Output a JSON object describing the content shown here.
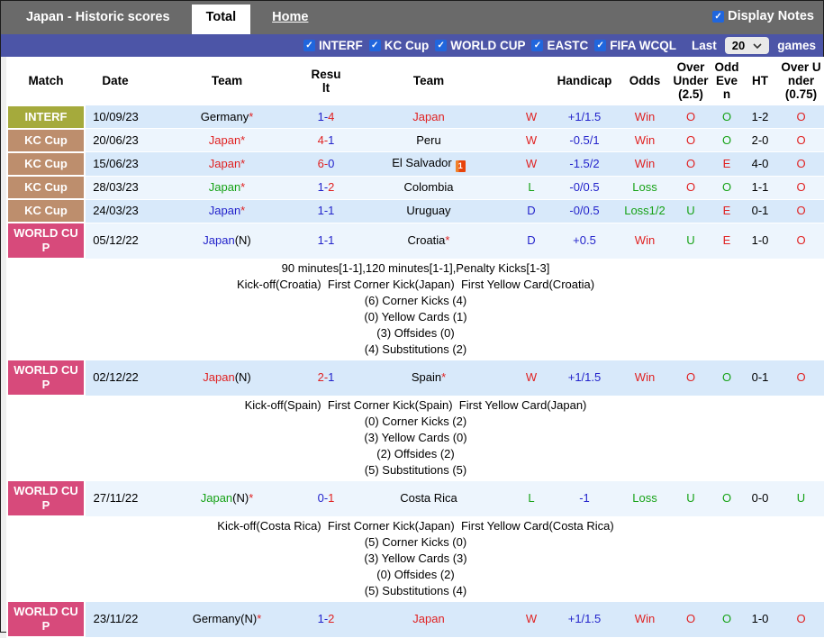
{
  "tabbar": {
    "title": "Japan - Historic scores",
    "total_tab": "Total",
    "home_tab": "Home",
    "display_notes_label": "Display Notes",
    "display_notes_checked": true
  },
  "filters": {
    "items": [
      "INTERF",
      "KC Cup",
      "WORLD CUP",
      "EASTC",
      "FIFA WCQL"
    ],
    "all_checked": true,
    "last_label": "Last",
    "games_label": "games",
    "last_value": "20",
    "check_glyph": "✓"
  },
  "palette": {
    "red": "#e02222",
    "green": "#16a216",
    "blue": "#2323cb",
    "black": "#000000",
    "interf": "#a5aa3c",
    "kc": "#bd8e6d",
    "wc": "#d74a7b",
    "stripe_blue": "#d8e9fa",
    "stripe_pale": "#edf5fd",
    "bar_gray": "#6a6a6a",
    "bar_purple": "#4c55a7",
    "checkbox_blue": "#2066dd",
    "redcard_orange": "#e8430a"
  },
  "table": {
    "headers": [
      "Match",
      "Date",
      "Team",
      "Result",
      "Team",
      "",
      "Handicap",
      "Odds",
      "Over Under (2.5)",
      "Odd Even",
      "HT",
      "Over Under (0.75)"
    ],
    "rows": [
      {
        "comp": "INTERF",
        "comp_bg": "interf",
        "date": "10/09/23",
        "home": {
          "name": "Germany",
          "n": false,
          "star": true,
          "color": "black",
          "redcard": false
        },
        "score": [
          {
            "t": "1-",
            "c": "blue"
          },
          {
            "t": "4",
            "c": "red"
          }
        ],
        "away": {
          "name": "Japan",
          "n": false,
          "star": false,
          "color": "red",
          "redcard": false
        },
        "wdl": {
          "t": "W",
          "c": "red"
        },
        "handicap": {
          "t": "+1/1.5",
          "c": "blue"
        },
        "odds": {
          "t": "Win",
          "c": "red"
        },
        "ou25": {
          "t": "O",
          "c": "red"
        },
        "oe": {
          "t": "O",
          "c": "green"
        },
        "ht": "1-2",
        "ou075": {
          "t": "O",
          "c": "red"
        },
        "stripe": "blue",
        "notes": []
      },
      {
        "comp": "KC Cup",
        "comp_bg": "kc",
        "date": "20/06/23",
        "home": {
          "name": "Japan",
          "n": false,
          "star": true,
          "color": "red",
          "redcard": false
        },
        "score": [
          {
            "t": "4-",
            "c": "red"
          },
          {
            "t": "1",
            "c": "blue"
          }
        ],
        "away": {
          "name": "Peru",
          "n": false,
          "star": false,
          "color": "black",
          "redcard": false
        },
        "wdl": {
          "t": "W",
          "c": "red"
        },
        "handicap": {
          "t": "-0.5/1",
          "c": "blue"
        },
        "odds": {
          "t": "Win",
          "c": "red"
        },
        "ou25": {
          "t": "O",
          "c": "red"
        },
        "oe": {
          "t": "O",
          "c": "green"
        },
        "ht": "2-0",
        "ou075": {
          "t": "O",
          "c": "red"
        },
        "stripe": "pale",
        "notes": []
      },
      {
        "comp": "KC Cup",
        "comp_bg": "kc",
        "date": "15/06/23",
        "home": {
          "name": "Japan",
          "n": false,
          "star": true,
          "color": "red",
          "redcard": false
        },
        "score": [
          {
            "t": "6-",
            "c": "red"
          },
          {
            "t": "0",
            "c": "blue"
          }
        ],
        "away": {
          "name": "El Salvador",
          "n": false,
          "star": false,
          "color": "black",
          "redcard": true
        },
        "wdl": {
          "t": "W",
          "c": "red"
        },
        "handicap": {
          "t": "-1.5/2",
          "c": "blue"
        },
        "odds": {
          "t": "Win",
          "c": "red"
        },
        "ou25": {
          "t": "O",
          "c": "red"
        },
        "oe": {
          "t": "E",
          "c": "red"
        },
        "ht": "4-0",
        "ou075": {
          "t": "O",
          "c": "red"
        },
        "stripe": "blue",
        "notes": []
      },
      {
        "comp": "KC Cup",
        "comp_bg": "kc",
        "date": "28/03/23",
        "home": {
          "name": "Japan",
          "n": false,
          "star": true,
          "color": "green",
          "redcard": false
        },
        "score": [
          {
            "t": "1-",
            "c": "blue"
          },
          {
            "t": "2",
            "c": "red"
          }
        ],
        "away": {
          "name": "Colombia",
          "n": false,
          "star": false,
          "color": "black",
          "redcard": false
        },
        "wdl": {
          "t": "L",
          "c": "green"
        },
        "handicap": {
          "t": "-0/0.5",
          "c": "blue"
        },
        "odds": {
          "t": "Loss",
          "c": "green"
        },
        "ou25": {
          "t": "O",
          "c": "red"
        },
        "oe": {
          "t": "O",
          "c": "green"
        },
        "ht": "1-1",
        "ou075": {
          "t": "O",
          "c": "red"
        },
        "stripe": "pale",
        "notes": []
      },
      {
        "comp": "KC Cup",
        "comp_bg": "kc",
        "date": "24/03/23",
        "home": {
          "name": "Japan",
          "n": false,
          "star": true,
          "color": "blue",
          "redcard": false
        },
        "score": [
          {
            "t": "1-1",
            "c": "blue"
          }
        ],
        "away": {
          "name": "Uruguay",
          "n": false,
          "star": false,
          "color": "black",
          "redcard": false
        },
        "wdl": {
          "t": "D",
          "c": "blue"
        },
        "handicap": {
          "t": "-0/0.5",
          "c": "blue"
        },
        "odds": {
          "t": "Loss1/2",
          "c": "green"
        },
        "ou25": {
          "t": "U",
          "c": "green"
        },
        "oe": {
          "t": "E",
          "c": "red"
        },
        "ht": "0-1",
        "ou075": {
          "t": "O",
          "c": "red"
        },
        "stripe": "blue",
        "notes": []
      },
      {
        "comp": "WORLD CUP",
        "comp_bg": "wc",
        "date": "05/12/22",
        "home": {
          "name": "Japan",
          "n": true,
          "star": false,
          "color": "blue",
          "redcard": false
        },
        "score": [
          {
            "t": "1-1",
            "c": "blue"
          }
        ],
        "away": {
          "name": "Croatia",
          "n": false,
          "star": true,
          "color": "black",
          "redcard": false
        },
        "wdl": {
          "t": "D",
          "c": "blue"
        },
        "handicap": {
          "t": "+0.5",
          "c": "blue"
        },
        "odds": {
          "t": "Win",
          "c": "red"
        },
        "ou25": {
          "t": "U",
          "c": "green"
        },
        "oe": {
          "t": "E",
          "c": "red"
        },
        "ht": "1-0",
        "ou075": {
          "t": "O",
          "c": "red"
        },
        "stripe": "pale",
        "notes": [
          "90 minutes[1-1],120 minutes[1-1],Penalty Kicks[1-3]",
          "Kick-off(Croatia)  First Corner Kick(Japan)  First Yellow Card(Croatia)",
          "(6) Corner Kicks (4)",
          "(0) Yellow Cards (1)",
          "(3) Offsides (0)",
          "(4) Substitutions (2)"
        ]
      },
      {
        "comp": "WORLD CUP",
        "comp_bg": "wc",
        "date": "02/12/22",
        "home": {
          "name": "Japan",
          "n": true,
          "star": false,
          "color": "red",
          "redcard": false
        },
        "score": [
          {
            "t": "2-",
            "c": "red"
          },
          {
            "t": "1",
            "c": "blue"
          }
        ],
        "away": {
          "name": "Spain",
          "n": false,
          "star": true,
          "color": "black",
          "redcard": false
        },
        "wdl": {
          "t": "W",
          "c": "red"
        },
        "handicap": {
          "t": "+1/1.5",
          "c": "blue"
        },
        "odds": {
          "t": "Win",
          "c": "red"
        },
        "ou25": {
          "t": "O",
          "c": "red"
        },
        "oe": {
          "t": "O",
          "c": "green"
        },
        "ht": "0-1",
        "ou075": {
          "t": "O",
          "c": "red"
        },
        "stripe": "blue",
        "notes": [
          "Kick-off(Spain)  First Corner Kick(Spain)  First Yellow Card(Japan)",
          "(0) Corner Kicks (2)",
          "(3) Yellow Cards (0)",
          "(2) Offsides (2)",
          "(5) Substitutions (5)"
        ]
      },
      {
        "comp": "WORLD CUP",
        "comp_bg": "wc",
        "date": "27/11/22",
        "home": {
          "name": "Japan",
          "n": true,
          "star": true,
          "color": "green",
          "redcard": false
        },
        "score": [
          {
            "t": "0-",
            "c": "blue"
          },
          {
            "t": "1",
            "c": "red"
          }
        ],
        "away": {
          "name": "Costa Rica",
          "n": false,
          "star": false,
          "color": "black",
          "redcard": false
        },
        "wdl": {
          "t": "L",
          "c": "green"
        },
        "handicap": {
          "t": "-1",
          "c": "blue"
        },
        "odds": {
          "t": "Loss",
          "c": "green"
        },
        "ou25": {
          "t": "U",
          "c": "green"
        },
        "oe": {
          "t": "O",
          "c": "green"
        },
        "ht": "0-0",
        "ou075": {
          "t": "U",
          "c": "green"
        },
        "stripe": "pale",
        "notes": [
          "Kick-off(Costa Rica)  First Corner Kick(Japan)  First Yellow Card(Costa Rica)",
          "(5) Corner Kicks (0)",
          "(3) Yellow Cards (3)",
          "(0) Offsides (2)",
          "(5) Substitutions (4)"
        ]
      },
      {
        "comp": "WORLD CUP",
        "comp_bg": "wc",
        "date": "23/11/22",
        "home": {
          "name": "Germany",
          "n": true,
          "star": true,
          "color": "black",
          "redcard": false
        },
        "score": [
          {
            "t": "1-",
            "c": "blue"
          },
          {
            "t": "2",
            "c": "red"
          }
        ],
        "away": {
          "name": "Japan",
          "n": false,
          "star": false,
          "color": "red",
          "redcard": false
        },
        "wdl": {
          "t": "W",
          "c": "red"
        },
        "handicap": {
          "t": "+1/1.5",
          "c": "blue"
        },
        "odds": {
          "t": "Win",
          "c": "red"
        },
        "ou25": {
          "t": "O",
          "c": "red"
        },
        "oe": {
          "t": "O",
          "c": "green"
        },
        "ht": "1-0",
        "ou075": {
          "t": "O",
          "c": "red"
        },
        "stripe": "blue",
        "notes": []
      }
    ]
  }
}
